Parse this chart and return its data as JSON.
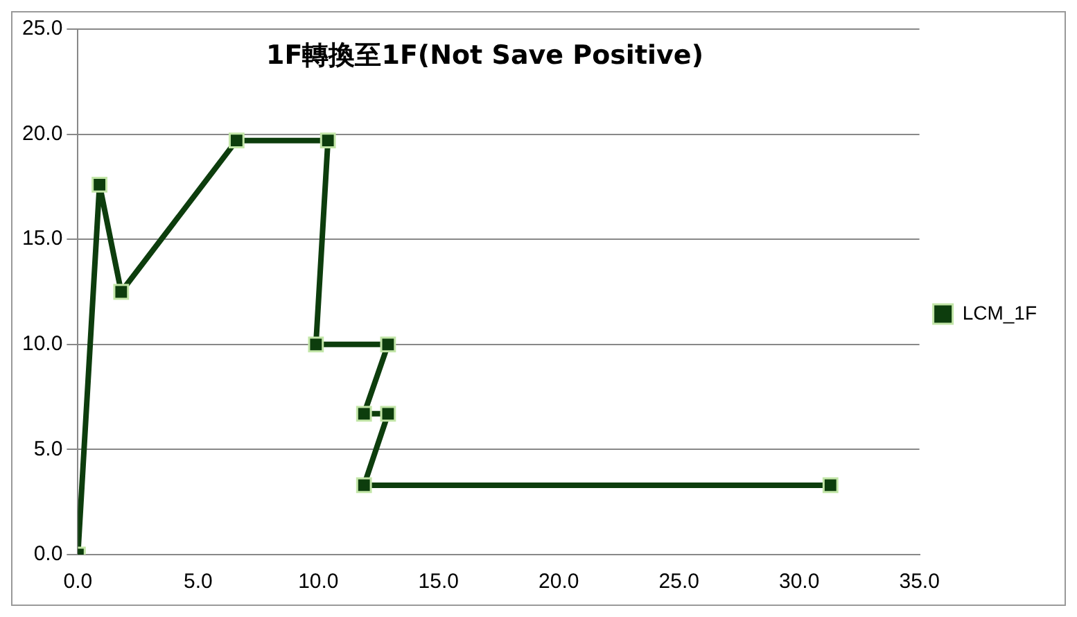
{
  "chart_data": {
    "type": "line",
    "title": "1F轉換至1F(Not Save Positive)",
    "x": [
      0,
      0.9,
      1.8,
      6.6,
      10.4,
      9.9,
      12.9,
      11.9,
      12.9,
      11.9,
      31.3
    ],
    "series": [
      {
        "name": "LCM_1F",
        "color": "#0d3d0d",
        "values": [
          0,
          17.6,
          12.5,
          19.7,
          19.7,
          10.0,
          10.0,
          6.7,
          6.7,
          3.3,
          3.3
        ]
      }
    ],
    "xlim": [
      0,
      35
    ],
    "xticks": [
      {
        "value": 0,
        "label": "0.0"
      },
      {
        "value": 5,
        "label": "5.0"
      },
      {
        "value": 10,
        "label": "10.0"
      },
      {
        "value": 15,
        "label": "15.0"
      },
      {
        "value": 20,
        "label": "20.0"
      },
      {
        "value": 25,
        "label": "25.0"
      },
      {
        "value": 30,
        "label": "30.0"
      },
      {
        "value": 35,
        "label": "35.0"
      }
    ],
    "ylim": [
      0,
      25
    ],
    "yticks": [
      {
        "value": 0,
        "label": "0.0"
      },
      {
        "value": 5,
        "label": "5.0"
      },
      {
        "value": 10,
        "label": "10.0"
      },
      {
        "value": 15,
        "label": "15.0"
      },
      {
        "value": 20,
        "label": "20.0"
      },
      {
        "value": 25,
        "label": "25.0"
      }
    ],
    "grid": "y",
    "legend": "right",
    "marker": "square",
    "line_style": "solid"
  }
}
